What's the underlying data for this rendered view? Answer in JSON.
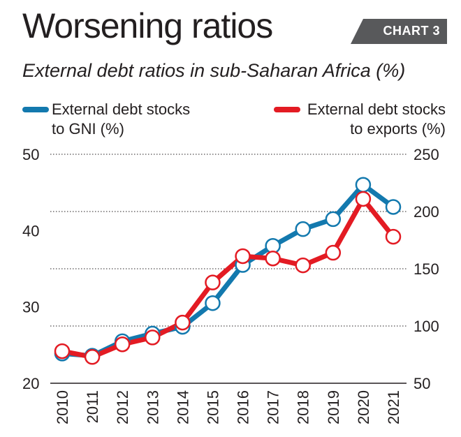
{
  "header": {
    "title": "Worsening ratios",
    "badge": "CHART 3",
    "subtitle": "External debt ratios in sub-Saharan Africa (%)"
  },
  "colors": {
    "gni": "#1379ae",
    "exports": "#e31b23",
    "badge": "#58595b"
  },
  "chart_data": {
    "type": "line",
    "x": [
      "2010",
      "2011",
      "2012",
      "2013",
      "2014",
      "2015",
      "2016",
      "2017",
      "2018",
      "2019",
      "2020",
      "2021"
    ],
    "series": [
      {
        "name": "External debt stocks to GNI (%)",
        "legend_line1": "External debt stocks",
        "legend_line2": "to GNI (%)",
        "axis": "left",
        "values": [
          23.9,
          23.6,
          25.5,
          26.5,
          27.4,
          30.5,
          35.5,
          38.0,
          40.2,
          41.5,
          46.0,
          43.1
        ]
      },
      {
        "name": "External debt stocks to exports (%)",
        "legend_line1": "External debt stocks",
        "legend_line2": "to exports (%)",
        "axis": "right",
        "values": [
          78,
          73,
          84,
          90,
          103,
          138,
          161,
          159,
          153,
          164,
          211,
          178
        ]
      }
    ],
    "y_left": {
      "ticks": [
        "20",
        "30",
        "40",
        "50"
      ],
      "range": [
        20,
        50
      ]
    },
    "y_right": {
      "ticks": [
        "50",
        "100",
        "150",
        "200",
        "250"
      ],
      "range": [
        50,
        250
      ]
    },
    "grid": true,
    "legend_position": "top"
  }
}
